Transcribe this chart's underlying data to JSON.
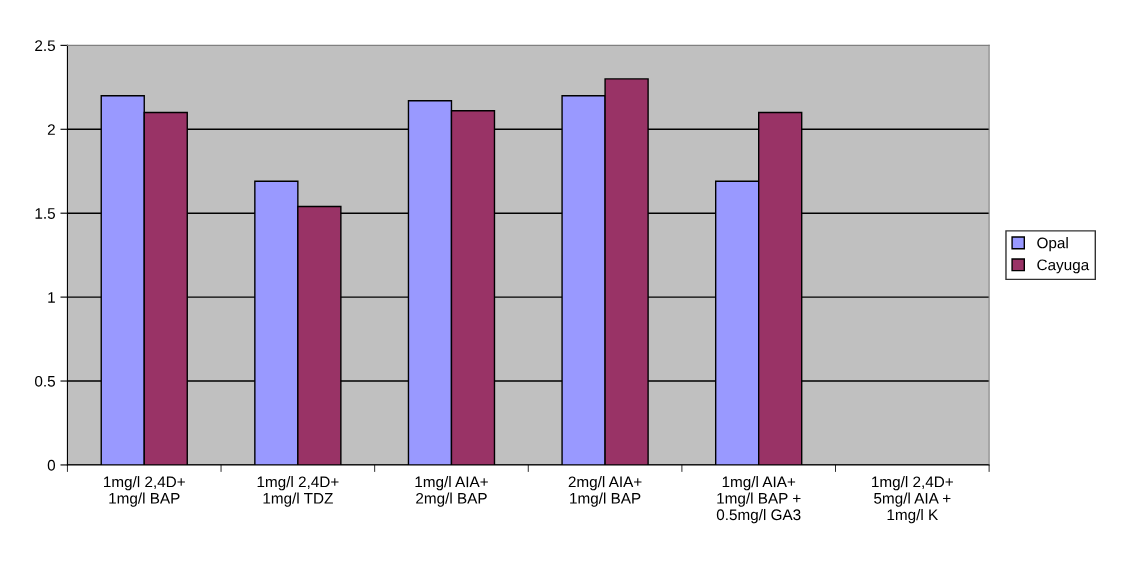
{
  "chart_data": {
    "type": "bar",
    "categories": [
      "1mg/l 2,4D+\n1mg/l BAP",
      "1mg/l 2,4D+\n1mg/l TDZ",
      "1mg/l AIA+\n2mg/l BAP",
      "2mg/l AIA+\n1mg/l BAP",
      "1mg/l AIA+\n1mg/l BAP +\n0.5mg/l GA3",
      "1mg/l 2,4D+\n5mg/l AIA +\n1mg/l K"
    ],
    "series": [
      {
        "name": "Opal",
        "color": "#9999ff",
        "values": [
          2.2,
          1.69,
          2.17,
          2.2,
          1.69,
          null
        ]
      },
      {
        "name": "Cayuga",
        "color": "#993366",
        "values": [
          2.1,
          1.54,
          2.11,
          2.3,
          2.1,
          null
        ]
      }
    ],
    "ylim": [
      0,
      2.5
    ],
    "yticks": [
      0,
      0.5,
      1,
      1.5,
      2,
      2.5
    ],
    "grid": "y",
    "legend": "right"
  }
}
